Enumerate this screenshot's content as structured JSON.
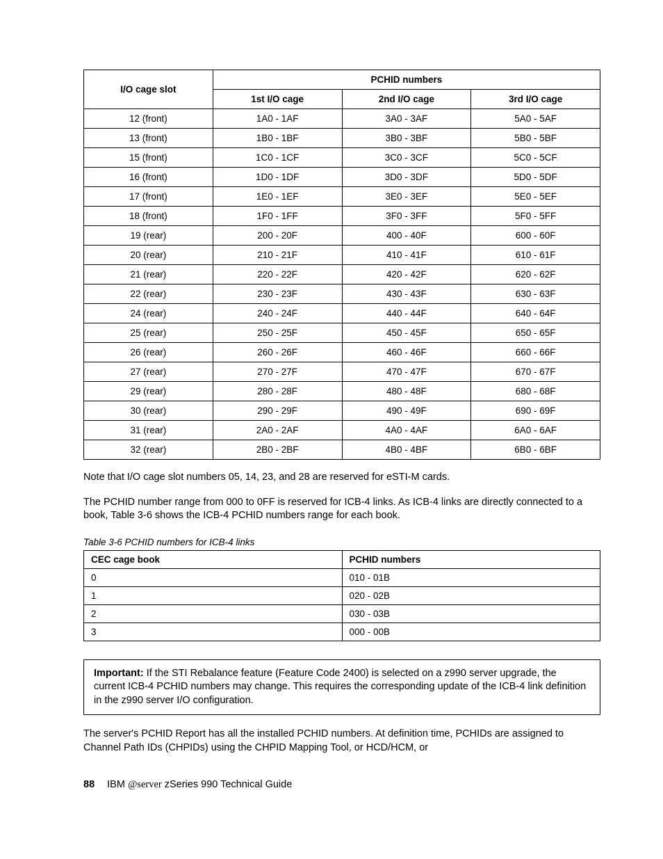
{
  "main_table": {
    "header": {
      "slot": "I/O cage slot",
      "pchid": "PCHID numbers",
      "cage1": "1st I/O cage",
      "cage2": "2nd I/O cage",
      "cage3": "3rd I/O cage"
    },
    "rows": [
      {
        "slot": "12 (front)",
        "c1": "1A0 - 1AF",
        "c2": "3A0 - 3AF",
        "c3": "5A0 - 5AF"
      },
      {
        "slot": "13 (front)",
        "c1": "1B0 - 1BF",
        "c2": "3B0 - 3BF",
        "c3": "5B0 - 5BF"
      },
      {
        "slot": "15 (front)",
        "c1": "1C0 - 1CF",
        "c2": "3C0 - 3CF",
        "c3": "5C0 - 5CF"
      },
      {
        "slot": "16 (front)",
        "c1": "1D0 - 1DF",
        "c2": "3D0 - 3DF",
        "c3": "5D0 - 5DF"
      },
      {
        "slot": "17 (front)",
        "c1": "1E0 - 1EF",
        "c2": "3E0 - 3EF",
        "c3": "5E0 - 5EF"
      },
      {
        "slot": "18 (front)",
        "c1": "1F0 - 1FF",
        "c2": "3F0 - 3FF",
        "c3": "5F0 - 5FF"
      },
      {
        "slot": "19 (rear)",
        "c1": "200 - 20F",
        "c2": "400 - 40F",
        "c3": "600 - 60F"
      },
      {
        "slot": "20 (rear)",
        "c1": "210 - 21F",
        "c2": "410 - 41F",
        "c3": "610 - 61F"
      },
      {
        "slot": "21 (rear)",
        "c1": "220 - 22F",
        "c2": "420 - 42F",
        "c3": "620 - 62F"
      },
      {
        "slot": "22 (rear)",
        "c1": "230 - 23F",
        "c2": "430 - 43F",
        "c3": "630 - 63F"
      },
      {
        "slot": "24 (rear)",
        "c1": "240 - 24F",
        "c2": "440 - 44F",
        "c3": "640 - 64F"
      },
      {
        "slot": "25 (rear)",
        "c1": "250 - 25F",
        "c2": "450 - 45F",
        "c3": "650 - 65F"
      },
      {
        "slot": "26 (rear)",
        "c1": "260 - 26F",
        "c2": "460 - 46F",
        "c3": "660 - 66F"
      },
      {
        "slot": "27 (rear)",
        "c1": "270 - 27F",
        "c2": "470 - 47F",
        "c3": "670 - 67F"
      },
      {
        "slot": "29 (rear)",
        "c1": "280 - 28F",
        "c2": "480 - 48F",
        "c3": "680 - 68F"
      },
      {
        "slot": "30 (rear)",
        "c1": "290 - 29F",
        "c2": "490 - 49F",
        "c3": "690 - 69F"
      },
      {
        "slot": "31 (rear)",
        "c1": "2A0 - 2AF",
        "c2": "4A0 - 4AF",
        "c3": "6A0 - 6AF"
      },
      {
        "slot": "32 (rear)",
        "c1": "2B0 - 2BF",
        "c2": "4B0 - 4BF",
        "c3": "6B0 - 6BF"
      }
    ]
  },
  "note1": "Note that I/O cage slot numbers 05, 14, 23, and 28 are reserved for eSTI-M cards.",
  "note2": "The PCHID number range from 000 to 0FF is reserved for ICB-4 links. As ICB-4 links are directly connected to a book, Table 3-6 shows the ICB-4 PCHID numbers range for each book.",
  "table36_caption": "Table 3-6   PCHID numbers for ICB-4 links",
  "icb_table": {
    "columns": [
      "CEC cage book",
      "PCHID numbers"
    ],
    "rows": [
      [
        "0",
        "010 - 01B"
      ],
      [
        "1",
        "020 - 02B"
      ],
      [
        "2",
        "030 - 03B"
      ],
      [
        "3",
        "000 - 00B"
      ]
    ]
  },
  "important_label": "Important:",
  "important_text": " If the STI Rebalance feature (Feature Code 2400) is selected on a z990 server upgrade, the current ICB-4 PCHID numbers may change. This requires the corresponding update of the ICB-4 link definition in the z990 server I/O configuration.",
  "closing": "The server's PCHID Report has all the installed PCHID numbers. At definition time, PCHIDs are assigned to Channel Path IDs (CHPIDs) using the CHPID Mapping Tool, or HCD/HCM, or",
  "footer": {
    "page": "88",
    "text_before": "IBM ",
    "text_after": " zSeries 990 Technical Guide"
  }
}
